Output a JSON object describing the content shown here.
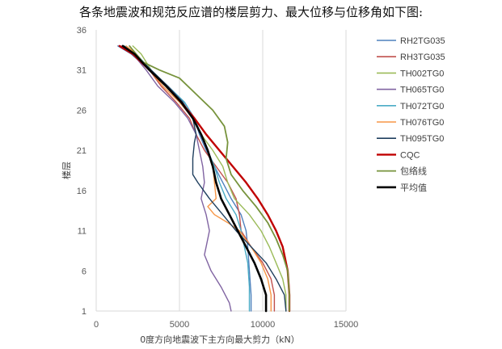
{
  "page": {
    "heading": "各条地震波和规范反应谱的楼层剪力、最大位移与位移角如下图:"
  },
  "chart_data": {
    "type": "line",
    "title": "",
    "xlabel": "0度方向地震波下主方向最大剪力（kN）",
    "ylabel": "楼层",
    "xlim": [
      0,
      15000
    ],
    "ylim": [
      1,
      36
    ],
    "xticks": [
      0,
      5000,
      10000,
      15000
    ],
    "yticks": [
      1,
      6,
      11,
      16,
      21,
      26,
      31,
      36
    ],
    "grid": "vertical",
    "legend_position": "right",
    "series": [
      {
        "name": "RH2TG035",
        "color": "#4f81bd",
        "width": 1.4,
        "points": [
          [
            1300,
            34
          ],
          [
            2100,
            33
          ],
          [
            3200,
            31
          ],
          [
            4300,
            29
          ],
          [
            5300,
            27
          ],
          [
            5900,
            25
          ],
          [
            6200,
            23
          ],
          [
            6600,
            21
          ],
          [
            7100,
            19
          ],
          [
            7600,
            17
          ],
          [
            8100,
            15
          ],
          [
            8700,
            13
          ],
          [
            9000,
            11
          ],
          [
            9100,
            9
          ],
          [
            9200,
            6
          ],
          [
            9300,
            3
          ],
          [
            9300,
            1
          ]
        ]
      },
      {
        "name": "RH3TG035",
        "color": "#c0504d",
        "width": 1.4,
        "points": [
          [
            1500,
            34
          ],
          [
            2200,
            33
          ],
          [
            3200,
            31
          ],
          [
            3900,
            29
          ],
          [
            4800,
            27
          ],
          [
            5600,
            25
          ],
          [
            6000,
            23
          ],
          [
            6500,
            21
          ],
          [
            7200,
            19
          ],
          [
            7900,
            17
          ],
          [
            8400,
            15
          ],
          [
            8600,
            13
          ],
          [
            8700,
            11
          ],
          [
            9300,
            9
          ],
          [
            10000,
            7
          ],
          [
            10500,
            5
          ],
          [
            10700,
            3
          ],
          [
            10700,
            1
          ]
        ]
      },
      {
        "name": "TH002TG0",
        "color": "#9bbb59",
        "width": 1.4,
        "points": [
          [
            2200,
            34
          ],
          [
            2700,
            33
          ],
          [
            3300,
            31
          ],
          [
            4200,
            29
          ],
          [
            5100,
            27
          ],
          [
            5800,
            25
          ],
          [
            6300,
            23
          ],
          [
            7000,
            21
          ],
          [
            7600,
            19
          ],
          [
            7900,
            17
          ],
          [
            8300,
            15
          ],
          [
            9200,
            13
          ],
          [
            9900,
            11
          ],
          [
            10400,
            9
          ],
          [
            10800,
            7
          ],
          [
            11200,
            5
          ],
          [
            11400,
            3
          ],
          [
            11400,
            1
          ]
        ]
      },
      {
        "name": "TH065TG0",
        "color": "#8064a2",
        "width": 1.4,
        "points": [
          [
            1600,
            34
          ],
          [
            2200,
            33
          ],
          [
            3000,
            31
          ],
          [
            3700,
            29
          ],
          [
            4700,
            27
          ],
          [
            5500,
            25
          ],
          [
            6000,
            23
          ],
          [
            6200,
            21
          ],
          [
            6400,
            19
          ],
          [
            6500,
            17
          ],
          [
            6300,
            15
          ],
          [
            6600,
            13
          ],
          [
            6800,
            11
          ],
          [
            6600,
            9
          ],
          [
            6500,
            8
          ],
          [
            6900,
            6
          ],
          [
            7500,
            4
          ],
          [
            8000,
            2
          ],
          [
            8100,
            1
          ]
        ]
      },
      {
        "name": "TH072TG0",
        "color": "#4bacc6",
        "width": 1.4,
        "points": [
          [
            1700,
            34
          ],
          [
            2400,
            33
          ],
          [
            3300,
            31
          ],
          [
            4300,
            29
          ],
          [
            5300,
            27
          ],
          [
            5900,
            25
          ],
          [
            6300,
            23
          ],
          [
            6700,
            21
          ],
          [
            7100,
            19
          ],
          [
            7400,
            17
          ],
          [
            7800,
            15
          ],
          [
            8400,
            13
          ],
          [
            8700,
            11
          ],
          [
            8900,
            9
          ],
          [
            9100,
            7
          ],
          [
            9200,
            4
          ],
          [
            9200,
            1
          ]
        ]
      },
      {
        "name": "TH076TG0",
        "color": "#f79646",
        "width": 1.4,
        "points": [
          [
            1800,
            34
          ],
          [
            2400,
            33
          ],
          [
            3200,
            31
          ],
          [
            4000,
            29
          ],
          [
            5000,
            27
          ],
          [
            5800,
            25
          ],
          [
            6300,
            23
          ],
          [
            6700,
            21
          ],
          [
            7000,
            19
          ],
          [
            7100,
            17
          ],
          [
            7200,
            15
          ],
          [
            6700,
            14
          ],
          [
            7100,
            13
          ],
          [
            7900,
            12
          ],
          [
            8600,
            11
          ],
          [
            9300,
            9
          ],
          [
            9900,
            7
          ],
          [
            10300,
            5
          ],
          [
            10500,
            3
          ],
          [
            10500,
            1
          ]
        ]
      },
      {
        "name": "TH095TG0",
        "color": "#1f3f5e",
        "width": 1.4,
        "points": [
          [
            1600,
            34
          ],
          [
            2300,
            33
          ],
          [
            3300,
            31
          ],
          [
            4300,
            29
          ],
          [
            5200,
            27
          ],
          [
            5800,
            25
          ],
          [
            6000,
            23
          ],
          [
            5900,
            22
          ],
          [
            5800,
            20
          ],
          [
            5800,
            18
          ],
          [
            6100,
            17
          ],
          [
            6800,
            15
          ],
          [
            7600,
            13
          ],
          [
            8400,
            11
          ],
          [
            9300,
            9
          ],
          [
            10200,
            7
          ],
          [
            10800,
            5
          ],
          [
            11300,
            3
          ],
          [
            11400,
            1
          ]
        ]
      },
      {
        "name": "CQC",
        "color": "#c00000",
        "width": 2.4,
        "points": [
          [
            1400,
            34
          ],
          [
            2200,
            33
          ],
          [
            3200,
            31
          ],
          [
            4200,
            29
          ],
          [
            5100,
            27
          ],
          [
            5900,
            25
          ],
          [
            6600,
            23
          ],
          [
            7400,
            21
          ],
          [
            8200,
            19
          ],
          [
            9000,
            17
          ],
          [
            9700,
            15
          ],
          [
            10300,
            13
          ],
          [
            10800,
            11
          ],
          [
            11200,
            9
          ],
          [
            11500,
            6
          ],
          [
            11600,
            3
          ],
          [
            11600,
            1
          ]
        ]
      },
      {
        "name": "包络线",
        "color": "#77933c",
        "width": 1.8,
        "points": [
          [
            2000,
            34
          ],
          [
            2400,
            33
          ],
          [
            2800,
            32
          ],
          [
            3800,
            31
          ],
          [
            5000,
            30
          ],
          [
            6000,
            28
          ],
          [
            7000,
            26
          ],
          [
            7700,
            24
          ],
          [
            7900,
            22
          ],
          [
            7800,
            20
          ],
          [
            8100,
            18
          ],
          [
            8800,
            16
          ],
          [
            9600,
            14
          ],
          [
            10300,
            12
          ],
          [
            10800,
            10
          ],
          [
            11200,
            8
          ],
          [
            11500,
            6
          ],
          [
            11600,
            3
          ],
          [
            11600,
            1
          ]
        ]
      },
      {
        "name": "平均值",
        "color": "#000000",
        "width": 2.6,
        "points": [
          [
            1600,
            34
          ],
          [
            2300,
            33
          ],
          [
            3200,
            31
          ],
          [
            4200,
            29
          ],
          [
            5100,
            27
          ],
          [
            5800,
            25
          ],
          [
            6300,
            23
          ],
          [
            6700,
            21
          ],
          [
            7000,
            19
          ],
          [
            7200,
            17
          ],
          [
            7500,
            15
          ],
          [
            8000,
            13
          ],
          [
            8500,
            11
          ],
          [
            9000,
            9
          ],
          [
            9500,
            7
          ],
          [
            9900,
            5
          ],
          [
            10200,
            3
          ],
          [
            10200,
            1
          ]
        ]
      }
    ]
  }
}
